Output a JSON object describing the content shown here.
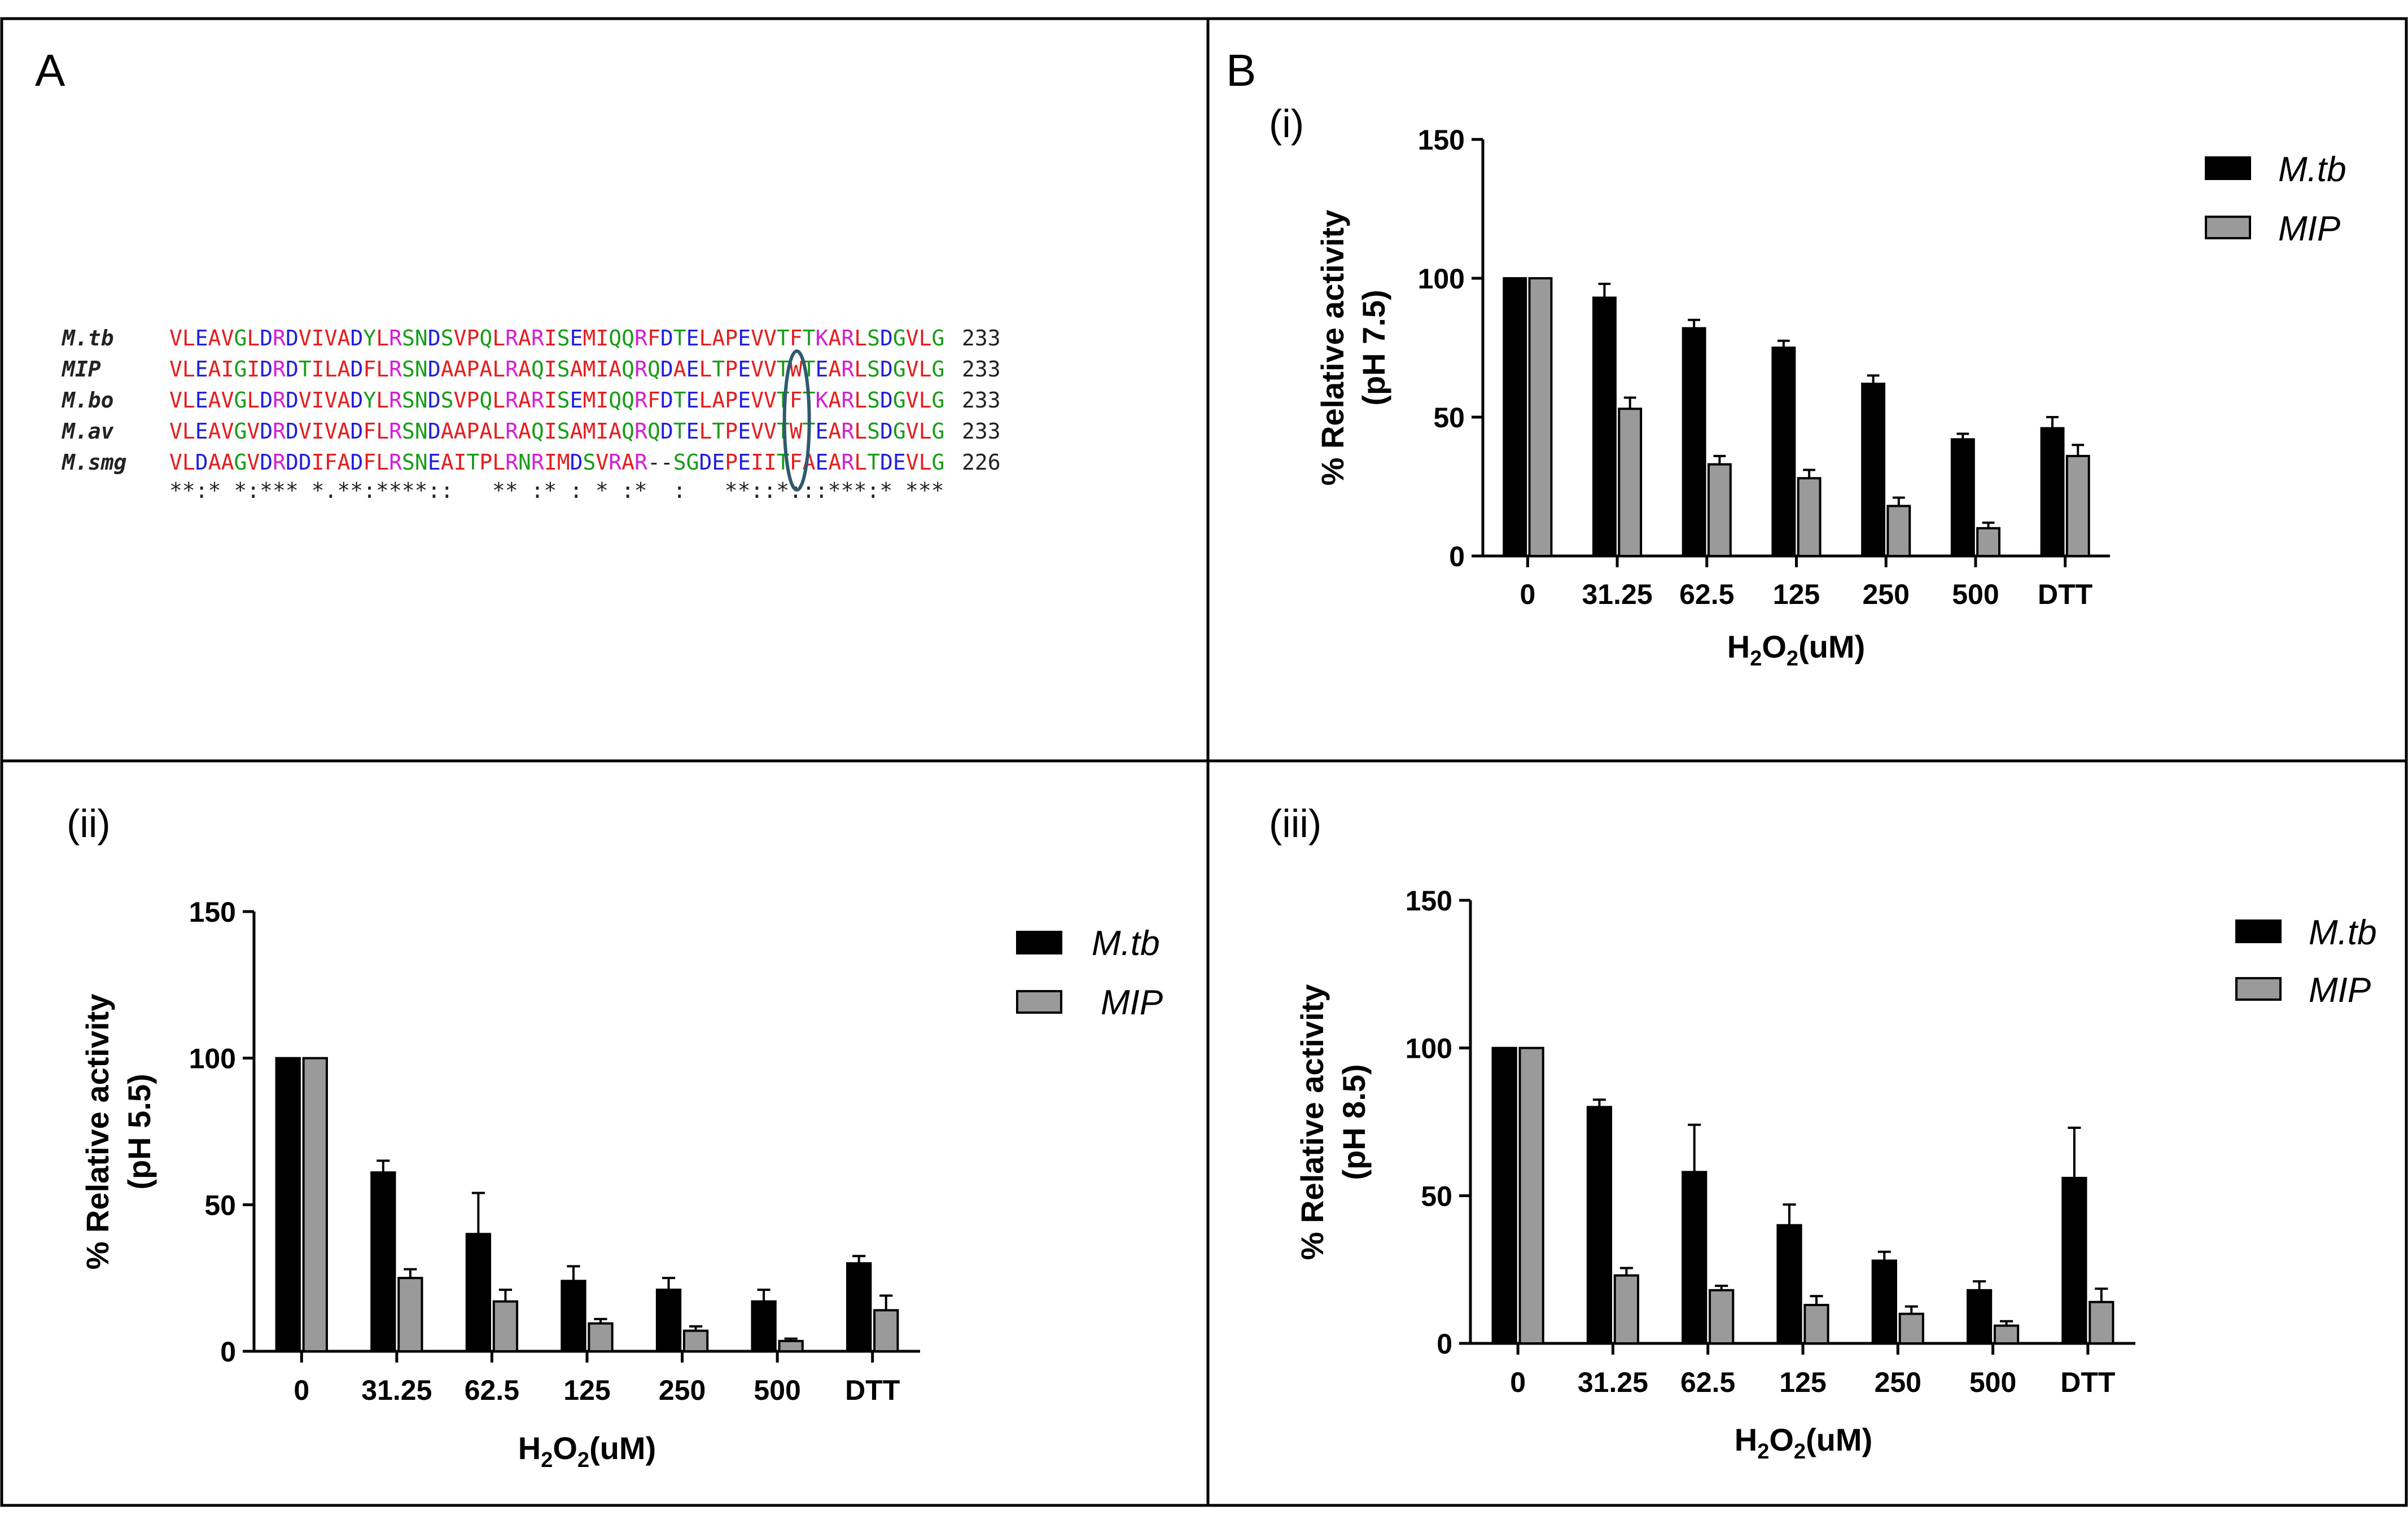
{
  "panels": {
    "a_label": "A",
    "b_label": "B"
  },
  "alignment": {
    "rows": [
      {
        "species": "M.tb",
        "seq": "VLEAVGLDRDVIVADYLRSNDSVPQLRARISEMIQQRFDTELAPEVVTFTKARLSDGVLG",
        "end": "233"
      },
      {
        "species": "MIP",
        "seq": "VLEAIGIDRDTILADFLRSNDAAPALRAQISAMIAQRQDAELTPEVVTWTEARLSDGVLG",
        "end": "233"
      },
      {
        "species": "M.bo",
        "seq": "VLEAVGLDRDVIVADYLRSNDSVPQLRARISEMIQQRFDTELAPEVVTFTKARLSDGVLG",
        "end": "233"
      },
      {
        "species": "M.av",
        "seq": "VLEAVGVDRDVIVADFLRSNDAAPALRAQISAMIAQRQDTELTPEVVTWTEARLSDGVLG",
        "end": "233"
      },
      {
        "species": "M.smg",
        "seq": "VLDAAGVDRDDIFADFLRSNEAITPLRNRIMDSVRAR--SGDEPEIITFAEARLTDEVLG",
        "end": "226"
      }
    ],
    "consensus": "**:* *:*** *.**:****::   ** :* : * :*  :   **::*:::***:* ***",
    "highlight_column": 49,
    "residue_colors": {
      "acidic": "#1f1fdc",
      "basic": "#d51fd5",
      "hydrophobic": "#e41e1e",
      "polar": "#199c19",
      "other": "#222222"
    },
    "oval_color": "#2f5a6e"
  },
  "legend_colors": {
    "mtb": "#000000",
    "mip": "#9a9a9a"
  },
  "chart_data": [
    {
      "id": "i",
      "type": "bar",
      "panel_label": "(i)",
      "categories": [
        "0",
        "31.25",
        "62.5",
        "125",
        "250",
        "500",
        "DTT"
      ],
      "series": [
        {
          "name": "M.tb",
          "values": [
            100,
            93,
            82,
            75,
            62,
            42,
            46
          ],
          "errors": [
            0,
            5,
            3,
            2.5,
            3,
            2,
            4
          ]
        },
        {
          "name": "MIP",
          "values": [
            100,
            53,
            33,
            28,
            18,
            10,
            36
          ],
          "errors": [
            0,
            4,
            3,
            3,
            3,
            2,
            4
          ]
        }
      ],
      "ylabel_line1": "% Relative activity",
      "ylabel_line2": "(pH 7.5)",
      "xlabel": "H₂O₂(uM)",
      "ylim": [
        0,
        150
      ],
      "yticks": [
        "0",
        "50",
        "100",
        "150"
      ],
      "legend": [
        "M.tb",
        "MIP"
      ]
    },
    {
      "id": "ii",
      "type": "bar",
      "panel_label": "(ii)",
      "categories": [
        "0",
        "31.25",
        "62.5",
        "125",
        "250",
        "500",
        "DTT"
      ],
      "series": [
        {
          "name": "M.tb",
          "values": [
            100,
            61,
            40,
            24,
            21,
            17,
            30
          ],
          "errors": [
            0,
            4,
            14,
            5,
            4,
            4,
            2.5
          ]
        },
        {
          "name": "MIP",
          "values": [
            100,
            25,
            17,
            9.5,
            7,
            3.5,
            14
          ],
          "errors": [
            0,
            3,
            4,
            1.5,
            1.5,
            0.8,
            5
          ]
        }
      ],
      "ylabel_line1": "% Relative activity",
      "ylabel_line2": "(pH 5.5)",
      "xlabel": "H₂O₂(uM)",
      "ylim": [
        0,
        150
      ],
      "yticks": [
        "0",
        "50",
        "100",
        "150"
      ],
      "legend": [
        "M.tb",
        "MIP"
      ]
    },
    {
      "id": "iii",
      "type": "bar",
      "panel_label": "(iii)",
      "categories": [
        "0",
        "31.25",
        "62.5",
        "125",
        "250",
        "500",
        "DTT"
      ],
      "series": [
        {
          "name": "M.tb",
          "values": [
            100,
            80,
            58,
            40,
            28,
            18,
            56
          ],
          "errors": [
            0,
            2.5,
            16,
            7,
            3,
            3,
            17
          ]
        },
        {
          "name": "MIP",
          "values": [
            100,
            23,
            18,
            13,
            10,
            6,
            14
          ],
          "errors": [
            0,
            2.5,
            1.5,
            3,
            2.5,
            1.5,
            4.5
          ]
        }
      ],
      "ylabel_line1": "% Relative activity",
      "ylabel_line2": "(pH 8.5)",
      "xlabel": "H₂O₂(uM)",
      "ylim": [
        0,
        150
      ],
      "yticks": [
        "0",
        "50",
        "100",
        "150"
      ],
      "legend": [
        "M.tb",
        "MIP"
      ]
    }
  ]
}
